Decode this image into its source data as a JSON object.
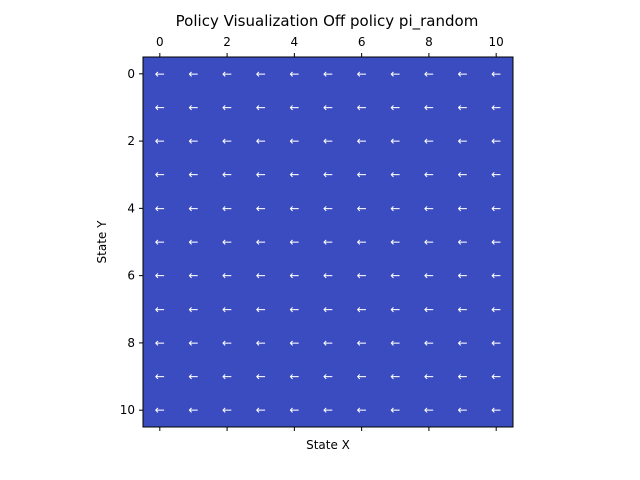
{
  "chart_data": {
    "type": "heatmap",
    "title": "Policy Visualization Off policy pi_random",
    "xlabel": "State X",
    "ylabel": "State Y",
    "x_ticks": [
      "0",
      "2",
      "4",
      "6",
      "8",
      "10"
    ],
    "y_ticks": [
      "0",
      "2",
      "4",
      "6",
      "8",
      "10"
    ],
    "x_range": [
      0,
      10
    ],
    "y_range": [
      0,
      10
    ],
    "grid_size": 11,
    "cell_color": "#3b4cc0",
    "arrow_color": "#ffffff",
    "arrow_symbol": "←",
    "policy": [
      [
        "←",
        "←",
        "←",
        "←",
        "←",
        "←",
        "←",
        "←",
        "←",
        "←",
        "←"
      ],
      [
        "←",
        "←",
        "←",
        "←",
        "←",
        "←",
        "←",
        "←",
        "←",
        "←",
        "←"
      ],
      [
        "←",
        "←",
        "←",
        "←",
        "←",
        "←",
        "←",
        "←",
        "←",
        "←",
        "←"
      ],
      [
        "←",
        "←",
        "←",
        "←",
        "←",
        "←",
        "←",
        "←",
        "←",
        "←",
        "←"
      ],
      [
        "←",
        "←",
        "←",
        "←",
        "←",
        "←",
        "←",
        "←",
        "←",
        "←",
        "←"
      ],
      [
        "←",
        "←",
        "←",
        "←",
        "←",
        "←",
        "←",
        "←",
        "←",
        "←",
        "←"
      ],
      [
        "←",
        "←",
        "←",
        "←",
        "←",
        "←",
        "←",
        "←",
        "←",
        "←",
        "←"
      ],
      [
        "←",
        "←",
        "←",
        "←",
        "←",
        "←",
        "←",
        "←",
        "←",
        "←",
        "←"
      ],
      [
        "←",
        "←",
        "←",
        "←",
        "←",
        "←",
        "←",
        "←",
        "←",
        "←",
        "←"
      ],
      [
        "←",
        "←",
        "←",
        "←",
        "←",
        "←",
        "←",
        "←",
        "←",
        "←",
        "←"
      ],
      [
        "←",
        "←",
        "←",
        "←",
        "←",
        "←",
        "←",
        "←",
        "←",
        "←",
        "←"
      ]
    ],
    "grid": false,
    "legend": "none"
  }
}
